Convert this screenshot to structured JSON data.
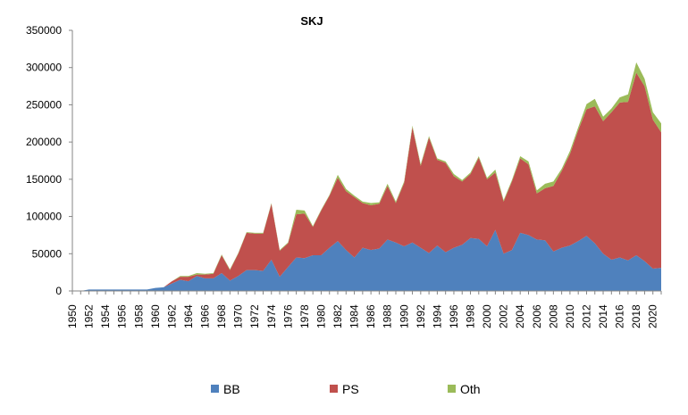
{
  "chart_data": {
    "type": "area",
    "stacked": true,
    "title": "SKJ",
    "xlabel": "",
    "ylabel": "",
    "ylim": [
      0,
      350000
    ],
    "yticks": [
      "0",
      "50000",
      "100000",
      "150000",
      "200000",
      "250000",
      "300000",
      "350000"
    ],
    "xlim": [
      1950,
      2021
    ],
    "xticks": [
      "1950",
      "1952",
      "1954",
      "1956",
      "1958",
      "1960",
      "1962",
      "1964",
      "1966",
      "1968",
      "1970",
      "1972",
      "1974",
      "1976",
      "1978",
      "1980",
      "1982",
      "1984",
      "1986",
      "1988",
      "1990",
      "1992",
      "1994",
      "1996",
      "1998",
      "2000",
      "2002",
      "2004",
      "2006",
      "2008",
      "2010",
      "2012",
      "2014",
      "2016",
      "2018",
      "2020"
    ],
    "grid": false,
    "legend_position": "bottom",
    "x": [
      1950,
      1951,
      1952,
      1953,
      1954,
      1955,
      1956,
      1957,
      1958,
      1959,
      1960,
      1961,
      1962,
      1963,
      1964,
      1965,
      1966,
      1967,
      1968,
      1969,
      1970,
      1971,
      1972,
      1973,
      1974,
      1975,
      1976,
      1977,
      1978,
      1979,
      1980,
      1981,
      1982,
      1983,
      1984,
      1985,
      1986,
      1987,
      1988,
      1989,
      1990,
      1991,
      1992,
      1993,
      1994,
      1995,
      1996,
      1997,
      1998,
      1999,
      2000,
      2001,
      2002,
      2003,
      2004,
      2005,
      2006,
      2007,
      2008,
      2009,
      2010,
      2011,
      2012,
      2013,
      2014,
      2015,
      2016,
      2017,
      2018,
      2019,
      2020,
      2021
    ],
    "series": [
      {
        "name": "BB",
        "color": "#4f81bd",
        "values": [
          0,
          0,
          2000,
          2000,
          2000,
          2000,
          2000,
          2000,
          2000,
          2000,
          4000,
          5000,
          10000,
          15000,
          13000,
          20000,
          17000,
          17000,
          24000,
          14000,
          20000,
          28000,
          28000,
          27000,
          42000,
          19000,
          32000,
          45000,
          44000,
          48000,
          48000,
          58000,
          67000,
          55000,
          45000,
          58000,
          55000,
          57000,
          69000,
          65000,
          60000,
          65000,
          58000,
          51000,
          61000,
          52000,
          58000,
          62000,
          71000,
          70000,
          60000,
          82000,
          50000,
          55000,
          78000,
          75000,
          69000,
          68000,
          53000,
          58000,
          61000,
          67000,
          74000,
          64000,
          50000,
          42000,
          45000,
          41000,
          48000,
          40000,
          30000,
          31000
        ]
      },
      {
        "name": "PS",
        "color": "#c0504d",
        "values": [
          0,
          0,
          0,
          0,
          0,
          0,
          0,
          0,
          0,
          0,
          0,
          0,
          3000,
          4000,
          6000,
          2000,
          5000,
          6000,
          24000,
          14000,
          30000,
          50000,
          49000,
          50000,
          75000,
          35000,
          32000,
          58000,
          60000,
          38000,
          60000,
          70000,
          85000,
          79000,
          81000,
          60000,
          60000,
          60000,
          72000,
          53000,
          85000,
          155000,
          110000,
          155000,
          115000,
          120000,
          96000,
          85000,
          86000,
          109000,
          90000,
          77000,
          70000,
          92000,
          100000,
          95000,
          62000,
          70000,
          88000,
          103000,
          123000,
          149000,
          170000,
          184000,
          178000,
          198000,
          208000,
          213000,
          245000,
          235000,
          200000,
          182000
        ]
      },
      {
        "name": "Oth",
        "color": "#9bbb59",
        "values": [
          0,
          0,
          0,
          0,
          0,
          0,
          0,
          0,
          0,
          0,
          0,
          0,
          0,
          1000,
          1000,
          2000,
          1000,
          1000,
          1000,
          1000,
          1000,
          1000,
          1000,
          1000,
          1000,
          1000,
          1000,
          6000,
          4000,
          1000,
          1000,
          1000,
          4000,
          3000,
          2000,
          2000,
          3000,
          2000,
          3000,
          2000,
          2000,
          2000,
          2000,
          2000,
          2000,
          2000,
          3000,
          2000,
          2000,
          2000,
          2000,
          4000,
          2000,
          2000,
          3000,
          4000,
          4000,
          6000,
          6000,
          3000,
          4000,
          4000,
          7000,
          10000,
          6000,
          5000,
          7000,
          10000,
          14000,
          10000,
          10000,
          12000
        ]
      }
    ]
  }
}
